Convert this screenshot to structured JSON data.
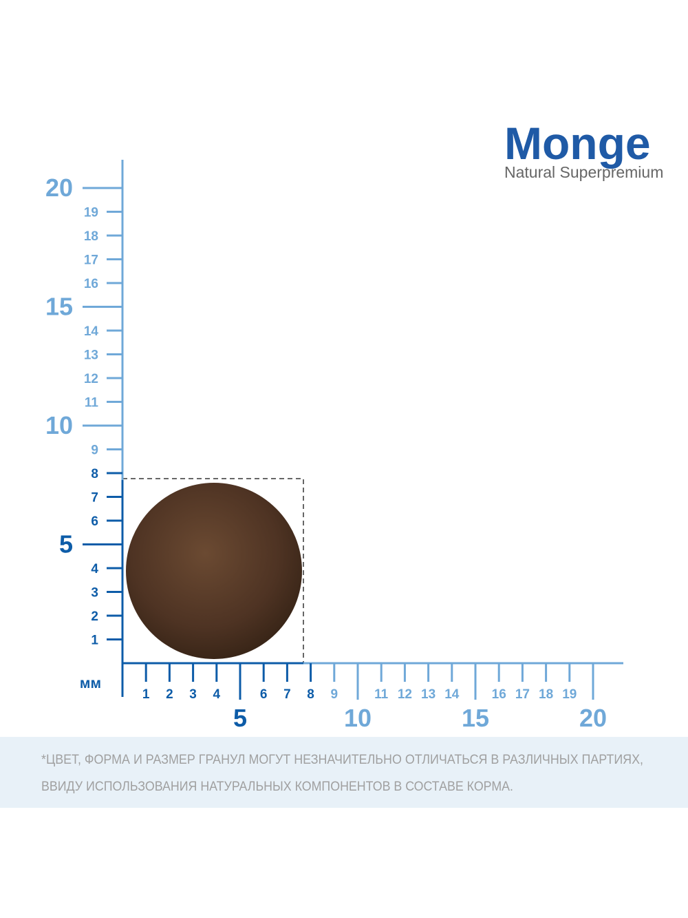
{
  "logo": {
    "brand": "Monge",
    "tagline": "Natural Superpremium"
  },
  "ruler": {
    "unit": "мм",
    "x_ticks": [
      1,
      2,
      3,
      4,
      5,
      6,
      7,
      8,
      9,
      10,
      11,
      12,
      13,
      14,
      15,
      16,
      17,
      18,
      19,
      20
    ],
    "y_ticks": [
      1,
      2,
      3,
      4,
      5,
      6,
      7,
      8,
      9,
      10,
      11,
      12,
      13,
      14,
      15,
      16,
      17,
      18,
      19,
      20
    ]
  },
  "note": [
    "*ЦВЕТ, ФОРМА И РАЗМЕР ГРАНУЛ МОГУТ НЕЗНАЧИТЕЛЬНО ОТЛИЧАТЬСЯ В РАЗЛИЧНЫХ ПАРТИЯХ,",
    "ВВИДУ ИСПОЛЬЗОВАНИЯ НАТУРАЛЬНЫХ КОМПОНЕНТОВ В СОСТАВЕ КОРМА."
  ]
}
